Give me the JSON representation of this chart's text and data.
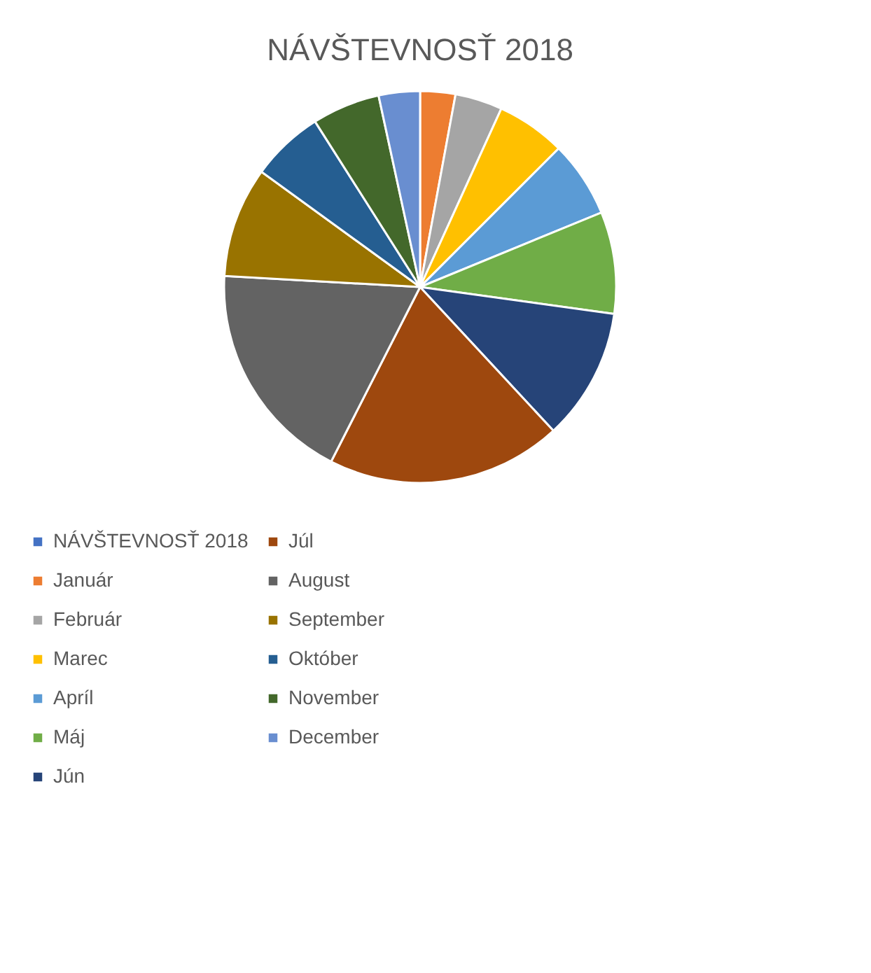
{
  "chart_data": {
    "type": "pie",
    "title": "NÁVŠTEVNOSŤ 2018",
    "categories": [
      "NÁVŠTEVNOSŤ 2018",
      "Január",
      "Február",
      "Marec",
      "Apríl",
      "Máj",
      "Jún",
      "Júl",
      "August",
      "September",
      "Október",
      "November",
      "December"
    ],
    "values": [
      0,
      2.9,
      3.9,
      5.7,
      6.3,
      8.4,
      10.9,
      19.4,
      18.4,
      9.1,
      6.0,
      5.6,
      3.4
    ],
    "colors": [
      "#4472c4",
      "#ed7d31",
      "#a5a5a5",
      "#ffc000",
      "#5b9bd5",
      "#70ad47",
      "#264478",
      "#9e480e",
      "#636363",
      "#997300",
      "#255e91",
      "#43682b",
      "#698ed0"
    ],
    "legend": "bottom"
  }
}
